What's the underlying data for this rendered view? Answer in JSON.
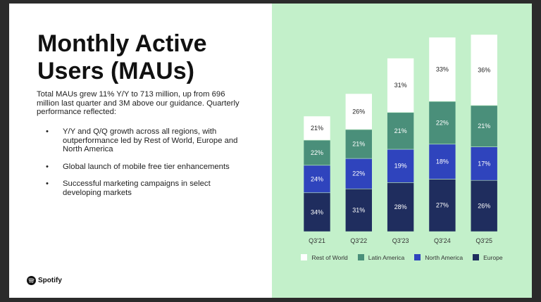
{
  "slide": {
    "title": "Monthly Active Users (MAUs)",
    "intro": "Total MAUs grew 11% Y/Y to 713 million, up from 696 million last quarter and 3M above our guidance. Quarterly performance reflected:",
    "bullets": [
      "Y/Y and Q/Q growth across all regions, with outperformance led by Rest of World, Europe and North America",
      "Global launch of mobile free tier enhancements",
      "Successful marketing campaigns in select developing markets"
    ],
    "logo_text": "Spotify"
  },
  "chart_data": {
    "type": "bar",
    "stacked": true,
    "categories": [
      "Q3'21",
      "Q3'22",
      "Q3'23",
      "Q3'24",
      "Q3'25"
    ],
    "relative_totals": [
      0.586,
      0.7,
      0.88,
      0.986,
      1.0
    ],
    "series": [
      {
        "name": "Europe",
        "color": "#1f2d5e",
        "values": [
          34,
          31,
          28,
          27,
          26
        ]
      },
      {
        "name": "North America",
        "color": "#2f44bd",
        "values": [
          24,
          22,
          19,
          18,
          17
        ]
      },
      {
        "name": "Latin America",
        "color": "#4a8f7a",
        "values": [
          22,
          21,
          21,
          22,
          21
        ]
      },
      {
        "name": "Rest of World",
        "color": "#ffffff",
        "values": [
          21,
          26,
          31,
          33,
          36
        ]
      }
    ],
    "value_suffix": "%",
    "legend_order": [
      "Rest of World",
      "Latin America",
      "North America",
      "Europe"
    ],
    "legend_position": "bottom",
    "grid": false
  }
}
